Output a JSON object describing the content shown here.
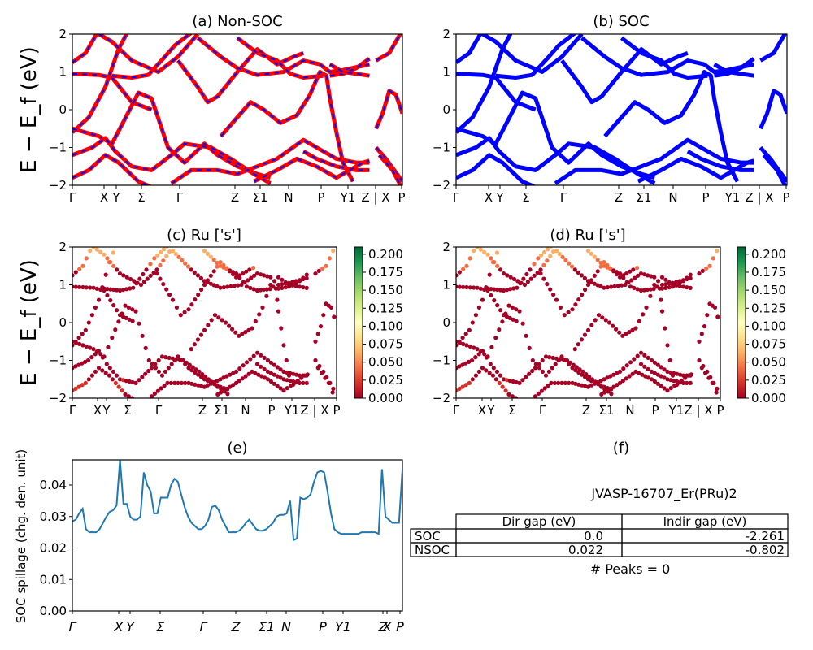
{
  "figure": {
    "ylabel_energy": "E − E_f (eV)",
    "kpath": [
      "Γ",
      "X",
      "Y",
      "Σ",
      "Γ",
      "Z",
      "Σ1",
      "N",
      "P",
      "Y1",
      "Z | X",
      "P"
    ]
  },
  "chart_data": [
    {
      "id": "a",
      "type": "line",
      "title": "(a) Non-SOC",
      "ylim": [
        -2,
        2
      ],
      "yticks": [
        "2",
        "1",
        "0",
        "−1",
        "−2"
      ],
      "series": [],
      "colors": {
        "bands": "#ff0000",
        "overlay": "#0000ff"
      }
    },
    {
      "id": "b",
      "type": "line",
      "title": "(b) SOC",
      "ylim": [
        -2,
        2
      ],
      "yticks": [
        "2",
        "1",
        "0",
        "−1",
        "−2"
      ],
      "series": [],
      "colors": {
        "bands": "#0000ff"
      }
    },
    {
      "id": "c",
      "type": "scatter",
      "title": "(c)  Ru ['s']",
      "ylim": [
        -2,
        2
      ],
      "yticks": [
        "2",
        "1",
        "0",
        "−1",
        "−2"
      ],
      "colorbar": {
        "ticks": [
          "0.200",
          "0.175",
          "0.150",
          "0.125",
          "0.100",
          "0.075",
          "0.050",
          "0.025",
          "0.000"
        ],
        "range": [
          0,
          0.21
        ],
        "cmap": "RdYlGn"
      }
    },
    {
      "id": "d",
      "type": "scatter",
      "title": "(d) Ru ['s']",
      "ylim": [
        -2,
        2
      ],
      "yticks": [
        "2",
        "1",
        "0",
        "−1",
        "−2"
      ],
      "colorbar": {
        "ticks": [
          "0.200",
          "0.175",
          "0.150",
          "0.125",
          "0.100",
          "0.075",
          "0.050",
          "0.025",
          "0.000"
        ],
        "range": [
          0,
          0.21
        ],
        "cmap": "RdYlGn"
      }
    },
    {
      "id": "e",
      "type": "line",
      "title": "(e)",
      "ylabel": "SOC spillage (chg. den. unit)",
      "ylim": [
        0,
        0.048
      ],
      "yticks": [
        "0.00",
        "0.01",
        "0.02",
        "0.03",
        "0.04"
      ],
      "xticks": [
        "Γ",
        "X",
        "Y",
        "Σ",
        "Γ",
        "Z",
        "Σ1",
        "N",
        "P",
        "Y1",
        "Z",
        "X",
        "P"
      ],
      "color": "#1f77b4",
      "series": [
        {
          "values": [
            0.0285,
            0.029,
            0.031,
            0.0325,
            0.026,
            0.025,
            0.025,
            0.025,
            0.026,
            0.028,
            0.03,
            0.0315,
            0.032,
            0.0335,
            0.048,
            0.034,
            0.034,
            0.03,
            0.029,
            0.029,
            0.03,
            0.044,
            0.04,
            0.038,
            0.031,
            0.031,
            0.036,
            0.036,
            0.036,
            0.04,
            0.042,
            0.041,
            0.037,
            0.033,
            0.03,
            0.028,
            0.027,
            0.026,
            0.026,
            0.027,
            0.029,
            0.033,
            0.0335,
            0.032,
            0.029,
            0.027,
            0.025,
            0.025,
            0.025,
            0.0255,
            0.0265,
            0.028,
            0.029,
            0.0275,
            0.026,
            0.0255,
            0.0255,
            0.026,
            0.027,
            0.028,
            0.03,
            0.0305,
            0.0305,
            0.031,
            0.035,
            0.0225,
            0.023,
            0.036,
            0.0355,
            0.036,
            0.037,
            0.041,
            0.044,
            0.0445,
            0.044,
            0.038,
            0.031,
            0.026,
            0.025,
            0.0245,
            0.0245,
            0.0245,
            0.0245,
            0.0245,
            0.0245,
            0.025,
            0.025,
            0.025,
            0.025,
            0.025,
            0.0245,
            0.045,
            0.03,
            0.029,
            0.028,
            0.028,
            0.028,
            0.045
          ]
        }
      ]
    }
  ],
  "panel_f": {
    "title": "(f)",
    "material": "JVASP-16707_Er(PRu)2",
    "headers": [
      "Dir gap (eV)",
      "Indir gap (eV)"
    ],
    "rows": [
      {
        "label": "SOC",
        "dir": "0.0",
        "indir": "-2.261"
      },
      {
        "label": "NSOC",
        "dir": "0.022",
        "indir": "-0.802"
      }
    ],
    "peaks": "# Peaks = 0"
  }
}
